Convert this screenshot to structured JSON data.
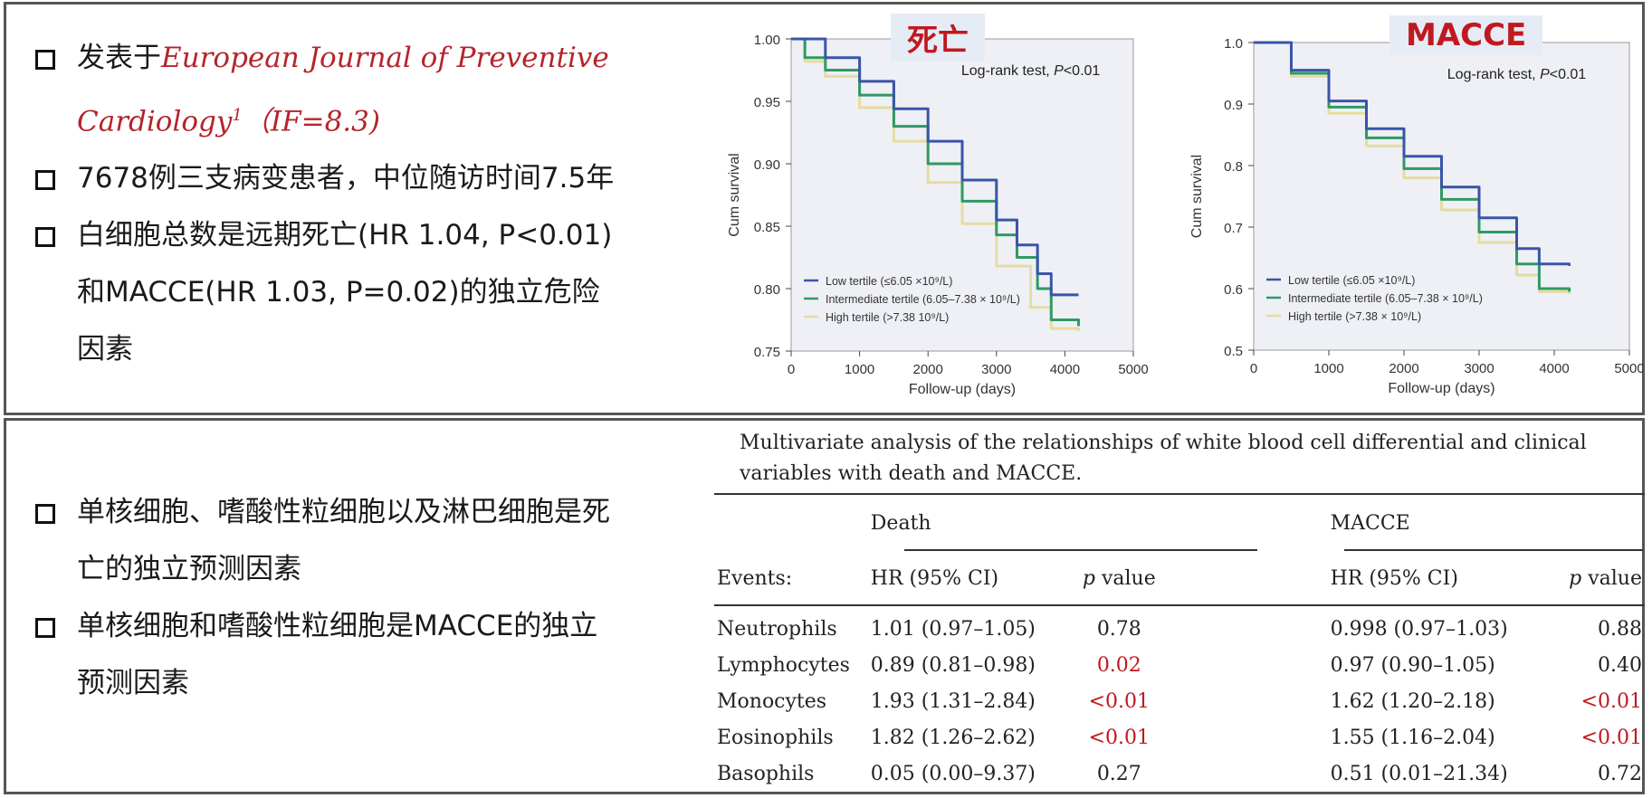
{
  "left_top": {
    "bullets": [
      {
        "prefix": "发表于",
        "journal": "European Journal of Preventive",
        "journal_cont": "Cardiology",
        "sup": "1",
        "impact": "（IF=8.3)"
      },
      {
        "text": "7678例三支病变患者，中位随访时间7.5年"
      },
      {
        "line1": "白细胞总数是远期死亡(HR 1.04, P<0.01)",
        "line2": "和MACCE(HR 1.03, P=0.02)的独立危险",
        "line3": "因素"
      }
    ]
  },
  "left_bottom": {
    "bullets": [
      {
        "line1": "单核细胞、嗜酸性粒细胞以及淋巴细胞是死",
        "line2": "亡的独立预测因素"
      },
      {
        "line1": "单核细胞和嗜酸性粒细胞是MACCE的独立",
        "line2": "预测因素"
      }
    ]
  },
  "colors": {
    "low": "#3a55a8",
    "intermediate": "#2f9a63",
    "high": "#e6dca0",
    "accent_red": "#c0191f"
  },
  "chart_data": [
    {
      "type": "line",
      "title": "死亡",
      "annotation_prefix": "Log-rank test, ",
      "annotation_p": "P",
      "annotation_suffix": "<0.01",
      "xlabel": "Follow-up (days)",
      "ylabel": "Cum survival",
      "xlim": [
        0,
        5000
      ],
      "ylim": [
        0.75,
        1.0
      ],
      "xticks": [
        0,
        1000,
        2000,
        3000,
        4000,
        5000
      ],
      "yticks": [
        0.75,
        0.8,
        0.85,
        0.9,
        0.95,
        1.0
      ],
      "ytick_labels": [
        "0.75",
        "0.80",
        "0.85",
        "0.90",
        "0.95",
        "1.00"
      ],
      "legend_position": "bottom-left",
      "series": [
        {
          "name": "Low tertile (≤6.05 ×10⁹/L)",
          "color_key": "low",
          "x": [
            0,
            500,
            1000,
            1500,
            2000,
            2500,
            3000,
            3300,
            3600,
            3800,
            4200
          ],
          "y": [
            1.0,
            0.985,
            0.966,
            0.944,
            0.918,
            0.887,
            0.855,
            0.835,
            0.812,
            0.795,
            0.795
          ]
        },
        {
          "name": "Intermediate tertile (6.05–7.38 × 10⁹/L)",
          "color_key": "intermediate",
          "x": [
            0,
            200,
            500,
            1000,
            1500,
            2000,
            2500,
            3000,
            3300,
            3600,
            3800,
            4200
          ],
          "y": [
            1.0,
            0.985,
            0.975,
            0.955,
            0.93,
            0.9,
            0.87,
            0.843,
            0.825,
            0.8,
            0.775,
            0.77
          ]
        },
        {
          "name": "High tertile (>7.38 10⁹/L)",
          "color_key": "high",
          "x": [
            0,
            200,
            500,
            1000,
            1500,
            2000,
            2500,
            3000,
            3500,
            3800,
            4200
          ],
          "y": [
            1.0,
            0.982,
            0.97,
            0.945,
            0.918,
            0.885,
            0.852,
            0.818,
            0.785,
            0.768,
            0.766
          ]
        }
      ]
    },
    {
      "type": "line",
      "title": "MACCE",
      "annotation_prefix": "Log-rank test, ",
      "annotation_p": "P",
      "annotation_suffix": "<0.01",
      "xlabel": "Follow-up (days)",
      "ylabel": "Cum survival",
      "xlim": [
        0,
        5000
      ],
      "ylim": [
        0.5,
        1.0
      ],
      "xticks": [
        0,
        1000,
        2000,
        3000,
        4000,
        5000
      ],
      "yticks": [
        0.5,
        0.6,
        0.7,
        0.8,
        0.9,
        1.0
      ],
      "ytick_labels": [
        "0.5",
        "0.6",
        "0.7",
        "0.8",
        "0.9",
        "1.0"
      ],
      "legend_position": "bottom-left",
      "series": [
        {
          "name": "Low tertile (≤6.05 ×10⁹/L)",
          "color_key": "low",
          "x": [
            0,
            500,
            1000,
            1500,
            2000,
            2500,
            3000,
            3500,
            3800,
            4200
          ],
          "y": [
            1.0,
            0.955,
            0.905,
            0.86,
            0.815,
            0.765,
            0.715,
            0.665,
            0.64,
            0.637
          ]
        },
        {
          "name": "Intermediate tertile (6.05–7.38 × 10⁹/L)",
          "color_key": "intermediate",
          "x": [
            0,
            500,
            1000,
            1500,
            2000,
            2500,
            3000,
            3500,
            3800,
            4200
          ],
          "y": [
            1.0,
            0.95,
            0.895,
            0.845,
            0.795,
            0.745,
            0.692,
            0.64,
            0.6,
            0.595
          ]
        },
        {
          "name": "High tertile (>7.38 × 10⁹/L)",
          "color_key": "high",
          "x": [
            0,
            500,
            1000,
            1500,
            2000,
            2500,
            3000,
            3500,
            3800,
            4200
          ],
          "y": [
            1.0,
            0.945,
            0.885,
            0.832,
            0.78,
            0.728,
            0.675,
            0.622,
            0.595,
            0.592
          ]
        }
      ]
    }
  ],
  "table": {
    "caption": "Multivariate analysis of the relationships of white blood cell differential and clinical variables with death and MACCE.",
    "group_death": "Death",
    "group_macce": "MACCE",
    "col_events": "Events:",
    "col_hr": "HR (95% CI)",
    "col_p_italic": "p",
    "col_p_rest": " value",
    "rows": [
      {
        "event": "Neutrophils",
        "death_hr": "1.01 (0.97–1.05)",
        "death_p": "0.78",
        "death_sig": false,
        "macce_hr": "0.998 (0.97–1.03)",
        "macce_p": "0.88",
        "macce_sig": false
      },
      {
        "event": "Lymphocytes",
        "death_hr": "0.89 (0.81–0.98)",
        "death_p": "0.02",
        "death_sig": true,
        "macce_hr": "0.97 (0.90–1.05)",
        "macce_p": "0.40",
        "macce_sig": false
      },
      {
        "event": "Monocytes",
        "death_hr": "1.93 (1.31–2.84)",
        "death_p": "<0.01",
        "death_sig": true,
        "macce_hr": "1.62 (1.20–2.18)",
        "macce_p": "<0.01",
        "macce_sig": true
      },
      {
        "event": "Eosinophils",
        "death_hr": "1.82 (1.26–2.62)",
        "death_p": "<0.01",
        "death_sig": true,
        "macce_hr": "1.55 (1.16–2.04)",
        "macce_p": "<0.01",
        "macce_sig": true
      },
      {
        "event": "Basophils",
        "death_hr": "0.05 (0.00–9.37)",
        "death_p": "0.27",
        "death_sig": false,
        "macce_hr": "0.51 (0.01–21.34)",
        "macce_p": "0.72",
        "macce_sig": false
      }
    ]
  }
}
